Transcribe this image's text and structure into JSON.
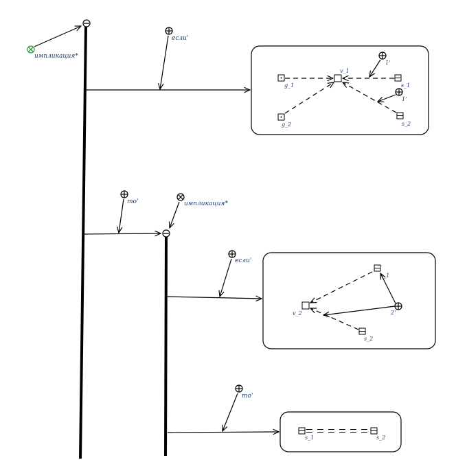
{
  "root": {
    "keyword": "импликация*",
    "keyword_color": "#2e9e3e"
  },
  "branch_if": {
    "label": "если'",
    "nodes": {
      "g1": "g_1",
      "g2": "g_2",
      "v1": "v_1",
      "s1": "s_1",
      "s2": "s_2"
    },
    "arc_label_1": "1'",
    "arc_label_2": "1'"
  },
  "branch_then": {
    "label": "то'",
    "inner": {
      "keyword": "импликация*",
      "if": {
        "label": "если'",
        "nodes": {
          "s1": "s_1",
          "v2": "v_2",
          "s2": "s_2"
        },
        "arc_label": "2'"
      },
      "then": {
        "label": "то'",
        "nodes": {
          "s1": "s_1",
          "s2": "s_2"
        }
      }
    }
  },
  "colors": {
    "label": "#1a3d7a",
    "line": "#000000"
  }
}
